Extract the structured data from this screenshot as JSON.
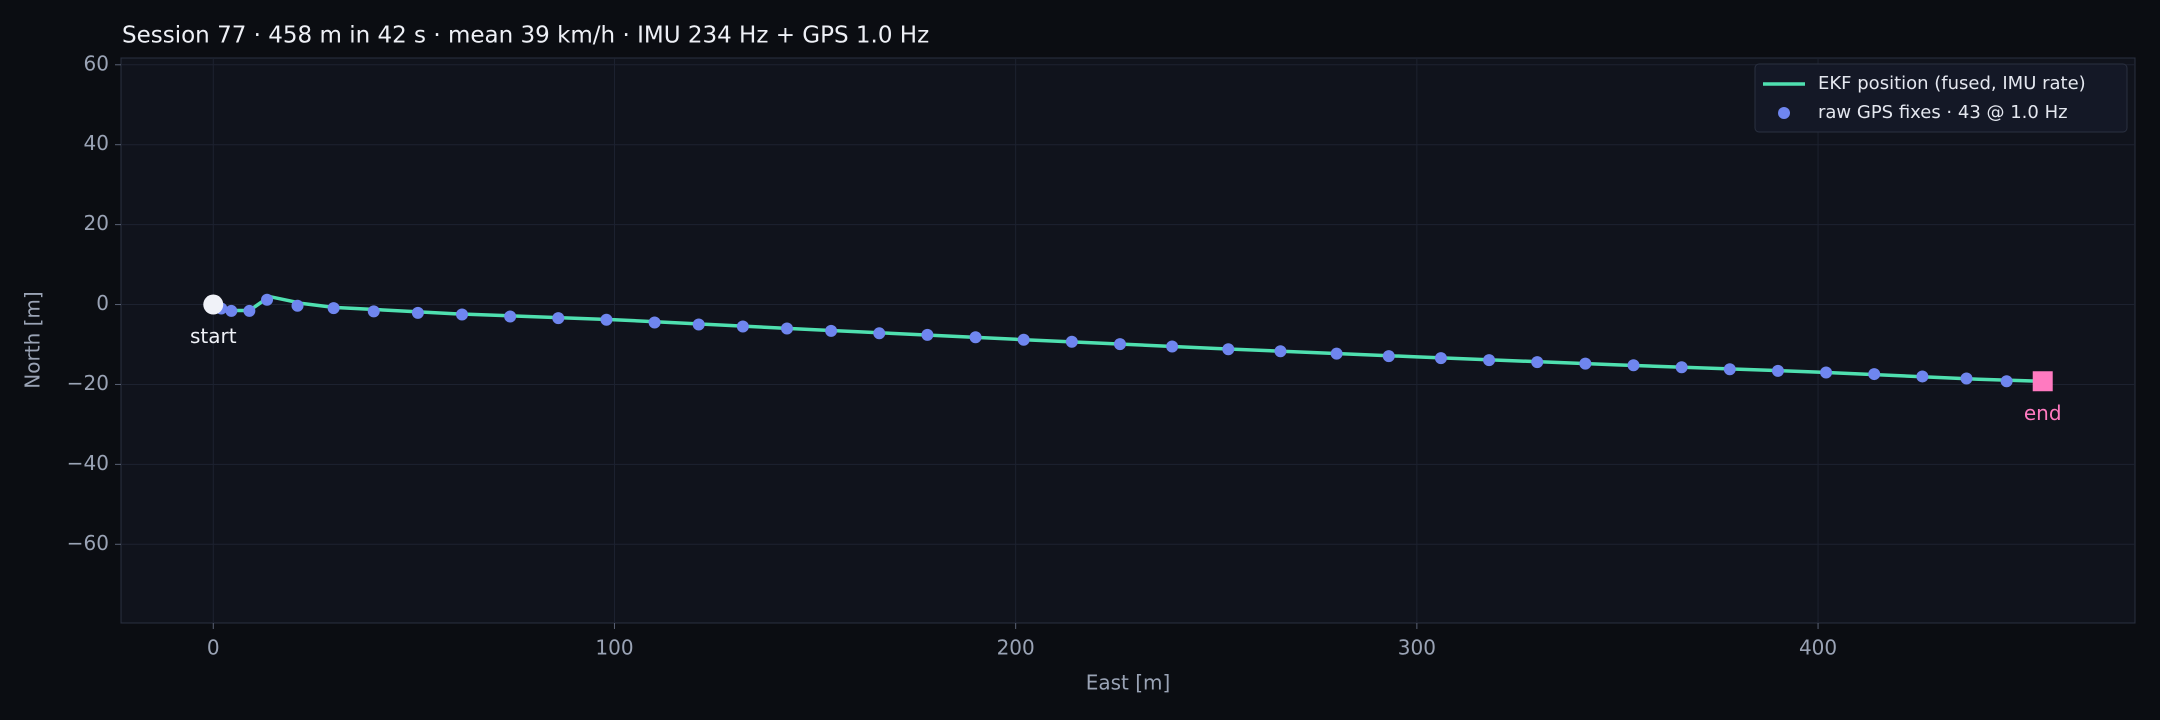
{
  "chart_data": {
    "type": "line",
    "title": "Session 77 · 458 m in 42 s · mean 39 km/h · IMU 234 Hz + GPS 1.0 Hz",
    "x_label": "East [m]",
    "y_label": "North [m]",
    "xlim": [
      -23,
      479
    ],
    "ylim": [
      -79.7,
      61.7
    ],
    "xticks": [
      0,
      100,
      200,
      300,
      400
    ],
    "yticks": [
      {
        "value": -60,
        "label": "−60"
      },
      {
        "value": -40,
        "label": "−40"
      },
      {
        "value": -20,
        "label": "−20"
      },
      0,
      20,
      40,
      60
    ],
    "grid": true,
    "legend": "upper right",
    "series": [
      {
        "name": "EKF position (fused, IMU rate)",
        "color": "#4fe0b0",
        "kind": "line",
        "x": [
          0,
          5,
          9,
          14,
          22,
          30,
          60,
          100,
          150,
          200,
          250,
          300,
          350,
          400,
          440,
          456
        ],
        "values": [
          0,
          -1.5,
          -1.5,
          2,
          0.3,
          -0.7,
          -2.3,
          -3.8,
          -6.3,
          -8.7,
          -11,
          -13.1,
          -15.1,
          -16.9,
          -18.7,
          -19.2
        ]
      },
      {
        "name": "raw GPS fixes · 43 @ 1.0 Hz",
        "color": "#6f86ef",
        "kind": "scatter",
        "x": [
          0,
          0.5,
          2,
          4.5,
          9,
          13.4,
          21,
          30,
          40,
          51,
          62,
          74,
          86,
          98,
          110,
          121,
          132,
          143,
          154,
          166,
          178,
          190,
          202,
          214,
          226,
          239,
          253,
          266,
          280,
          293,
          306,
          318,
          330,
          342,
          354,
          366,
          378,
          390,
          402,
          414,
          426,
          437,
          447
        ],
        "values": [
          0,
          -0.5,
          -1,
          -1.6,
          -1.6,
          1.2,
          -0.3,
          -0.9,
          -1.7,
          -2.1,
          -2.5,
          -3.0,
          -3.4,
          -3.8,
          -4.5,
          -5.0,
          -5.5,
          -6.0,
          -6.6,
          -7.2,
          -7.6,
          -8.2,
          -8.8,
          -9.3,
          -9.9,
          -10.5,
          -11.2,
          -11.7,
          -12.3,
          -12.9,
          -13.4,
          -13.9,
          -14.4,
          -14.8,
          -15.2,
          -15.7,
          -16.2,
          -16.6,
          -17.0,
          -17.4,
          -18.0,
          -18.5,
          -19.2
        ]
      }
    ],
    "annotations": [
      {
        "text": "start",
        "x": 0,
        "y": 0,
        "color": "#f0f2f8"
      },
      {
        "text": "end",
        "x": 456,
        "y": -19.2,
        "color": "#ff7ac0"
      }
    ]
  }
}
